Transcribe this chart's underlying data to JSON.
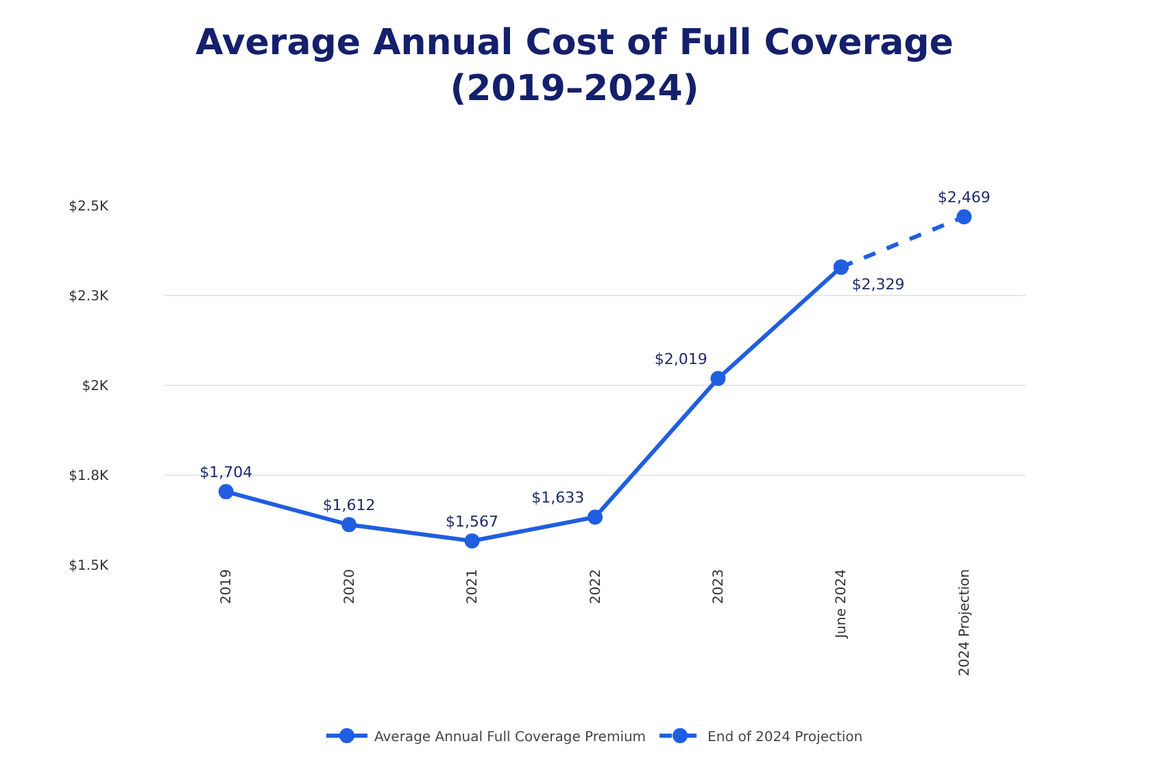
{
  "chart_data": {
    "type": "line",
    "title": "Average Annual Cost of Full Coverage\n(2019–2024)",
    "categories": [
      "2019",
      "2020",
      "2021",
      "2022",
      "2023",
      "June 2024",
      "2024 Projection"
    ],
    "series": [
      {
        "name": "Average Annual Full Coverage Premium",
        "color": "#1f5ee0",
        "line_style": "solid",
        "values": [
          1704,
          1612,
          1567,
          1633,
          2019,
          2329,
          null
        ],
        "value_labels": [
          "$1,704",
          "$1,612",
          "$1,567",
          "$1,633",
          "$2,019",
          "$2,329",
          null
        ]
      },
      {
        "name": "End of 2024 Projection",
        "color": "#1f5ee0",
        "line_style": "dashed",
        "values": [
          null,
          null,
          null,
          null,
          null,
          2329,
          2469
        ],
        "value_labels": [
          null,
          null,
          null,
          null,
          null,
          null,
          "$2,469"
        ]
      }
    ],
    "ylim": [
      1500,
      2500
    ],
    "yticks": [
      {
        "value": 1500,
        "label": "$1.5K"
      },
      {
        "value": 1750,
        "label": "$1.8K"
      },
      {
        "value": 2000,
        "label": "$2K"
      },
      {
        "value": 2250,
        "label": "$2.3K"
      },
      {
        "value": 2500,
        "label": "$2.5K"
      }
    ],
    "grid": "y",
    "legend": "bottom",
    "marker": "circle"
  }
}
